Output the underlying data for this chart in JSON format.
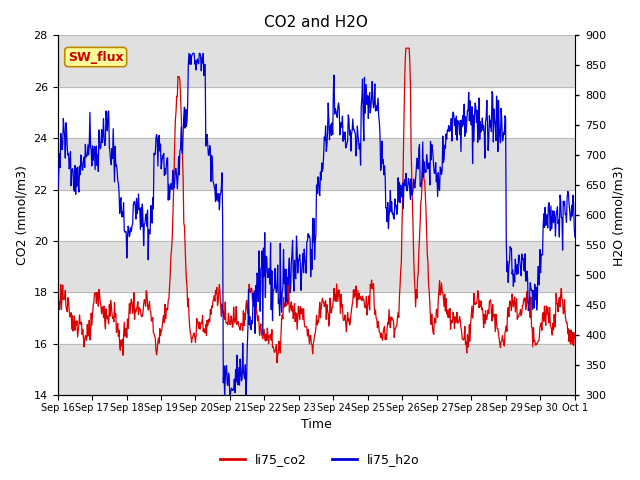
{
  "title": "CO2 and H2O",
  "xlabel": "Time",
  "ylabel_left": "CO2 (mmol/m3)",
  "ylabel_right": "H2O (mmol/m3)",
  "ylim_left": [
    14,
    28
  ],
  "ylim_right": [
    300,
    900
  ],
  "yticks_left": [
    14,
    16,
    18,
    20,
    22,
    24,
    26,
    28
  ],
  "yticks_right": [
    300,
    350,
    400,
    450,
    500,
    550,
    600,
    650,
    700,
    750,
    800,
    850,
    900
  ],
  "xtick_labels": [
    "Sep 16",
    "Sep 17",
    "Sep 18",
    "Sep 19",
    "Sep 20",
    "Sep 21",
    "Sep 22",
    "Sep 23",
    "Sep 24",
    "Sep 25",
    "Sep 26",
    "Sep 27",
    "Sep 28",
    "Sep 29",
    "Sep 30",
    "Oct 1"
  ],
  "color_co2": "#dd0000",
  "color_h2o": "#0000dd",
  "legend_co2": "li75_co2",
  "legend_h2o": "li75_h2o",
  "annotation_text": "SW_flux",
  "annotation_color": "#cc0000",
  "annotation_bg": "#ffff99",
  "annotation_border": "#bb8800",
  "plot_bg_color": "#ffffff",
  "band_dark_color": "#e0e0e0",
  "title_fontsize": 11,
  "label_fontsize": 9,
  "tick_fontsize": 8
}
